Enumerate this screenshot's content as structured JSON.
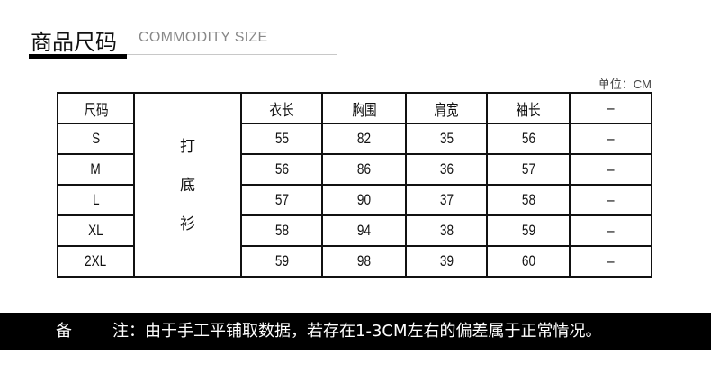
{
  "header": {
    "title": "商品尺码",
    "subtitle": "COMMODITY SIZE"
  },
  "unit": "单位：CM",
  "table": {
    "headers": [
      "尺码",
      "",
      "衣长",
      "胸围",
      "肩宽",
      "袖长",
      "–"
    ],
    "style_label": [
      "打",
      "底",
      "衫"
    ],
    "rows": [
      [
        "S",
        "55",
        "82",
        "35",
        "56",
        "–"
      ],
      [
        "M",
        "56",
        "86",
        "36",
        "57",
        "–"
      ],
      [
        "L",
        "57",
        "90",
        "37",
        "58",
        "–"
      ],
      [
        "XL",
        "58",
        "94",
        "38",
        "59",
        "–"
      ],
      [
        "2XL",
        "59",
        "98",
        "39",
        "60",
        "–"
      ]
    ]
  },
  "note": {
    "label_1": "备",
    "label_2": "注：由于手工平铺取数据，若存在1-3CM左右的偏差属于正常情况。"
  },
  "colors": {
    "note_bg": "#000000",
    "title_underline": "#000000",
    "divider": "#c8c8c8"
  }
}
